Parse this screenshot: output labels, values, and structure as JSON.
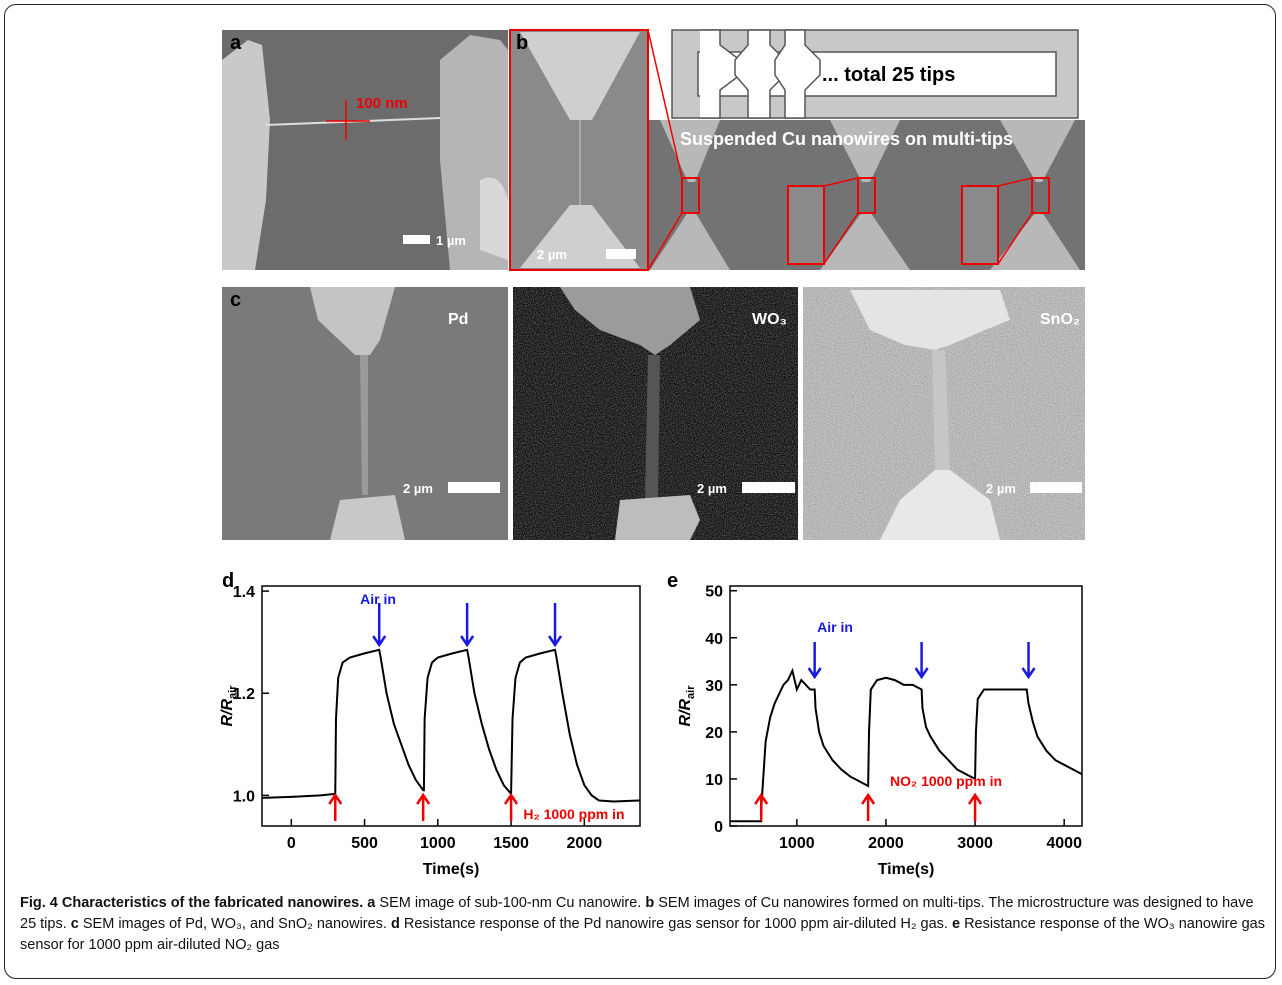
{
  "panels": {
    "a": {
      "label": "a",
      "annotation": "100 nm",
      "scale": "1 µm"
    },
    "b": {
      "label": "b",
      "scale": "2 µm",
      "schematic": "... total 25 tips",
      "title": "Suspended Cu nanowires on multi-tips"
    },
    "c": {
      "label": "c",
      "images": [
        {
          "material": "Pd",
          "scale": "2 µm"
        },
        {
          "material": "WO₃",
          "scale": "2 µm"
        },
        {
          "material": "SnO₂",
          "scale": "2 µm"
        }
      ]
    }
  },
  "chart_data": [
    {
      "type": "line",
      "panel_label": "d",
      "xlabel": "Time(s)",
      "ylabel": [
        "R/R",
        "air"
      ],
      "x": [
        -200,
        0,
        200,
        300,
        305,
        320,
        350,
        400,
        500,
        600,
        610,
        650,
        700,
        750,
        800,
        850,
        900,
        905,
        910,
        930,
        960,
        1000,
        1100,
        1200,
        1210,
        1250,
        1300,
        1350,
        1400,
        1450,
        1500,
        1510,
        1530,
        1560,
        1600,
        1700,
        1800,
        1810,
        1850,
        1900,
        1950,
        2000,
        2050,
        2100,
        2200,
        2380
      ],
      "series": [
        {
          "color": "#000000",
          "values": [
            0.995,
            0.997,
            1.0,
            1.003,
            1.15,
            1.23,
            1.26,
            1.27,
            1.278,
            1.285,
            1.27,
            1.2,
            1.14,
            1.1,
            1.06,
            1.03,
            1.01,
            1.01,
            1.15,
            1.23,
            1.26,
            1.27,
            1.278,
            1.285,
            1.27,
            1.2,
            1.14,
            1.09,
            1.05,
            1.02,
            1.003,
            1.15,
            1.23,
            1.26,
            1.27,
            1.278,
            1.285,
            1.27,
            1.2,
            1.12,
            1.06,
            1.02,
            1.0,
            0.99,
            0.988,
            0.99
          ]
        }
      ],
      "xlim": [
        -200,
        2380
      ],
      "ylim": [
        0.94,
        1.41
      ],
      "xticks": [
        0,
        500,
        1000,
        1500,
        2000
      ],
      "yticks": [
        {
          "value": 1,
          "label": "1.0"
        },
        1.2,
        1.4
      ],
      "events": {
        "gas_in": [
          300,
          900,
          1500
        ],
        "air_in": [
          600,
          1200,
          1800
        ]
      },
      "air_label": "Air in",
      "gas_label": "H₂ 1000 ppm in"
    },
    {
      "type": "line",
      "panel_label": "e",
      "xlabel": "Time(s)",
      "ylabel": [
        "R/R",
        "air"
      ],
      "x": [
        250,
        600,
        605,
        650,
        700,
        750,
        800,
        850,
        900,
        950,
        1000,
        1050,
        1100,
        1150,
        1200,
        1210,
        1250,
        1300,
        1400,
        1500,
        1600,
        1700,
        1800,
        1810,
        1830,
        1900,
        2000,
        2100,
        2200,
        2300,
        2400,
        2410,
        2450,
        2500,
        2600,
        2700,
        2800,
        2900,
        3000,
        3010,
        3030,
        3100,
        3200,
        3300,
        3400,
        3500,
        3580,
        3600,
        3650,
        3700,
        3800,
        3900,
        4000,
        4100,
        4200
      ],
      "series": [
        {
          "color": "#000000",
          "values": [
            1,
            1,
            5,
            18,
            23,
            26,
            28,
            30,
            31,
            33,
            29,
            31,
            30,
            29,
            29,
            25,
            20,
            17,
            14,
            12,
            10.5,
            9.5,
            8.5,
            20,
            29,
            31,
            31.5,
            31,
            30,
            30,
            29,
            25,
            21,
            19,
            16,
            14,
            12,
            11,
            10,
            20,
            27,
            29,
            29,
            29,
            29,
            29,
            29,
            26,
            22,
            19,
            16,
            14,
            13,
            12,
            11
          ]
        }
      ],
      "xlim": [
        250,
        4200
      ],
      "ylim": [
        0,
        51
      ],
      "xticks": [
        1000,
        2000,
        3000,
        4000
      ],
      "yticks": [
        0,
        10,
        20,
        30,
        40,
        50
      ],
      "events": {
        "gas_in": [
          600,
          1800,
          3000
        ],
        "air_in": [
          1200,
          2400,
          3600
        ]
      },
      "air_label": "Air in",
      "gas_label": "NO₂ 1000 ppm in"
    }
  ],
  "caption": {
    "title": "Fig. 4 Characteristics of the fabricated nanowires.",
    "items": [
      {
        "label": "a",
        "text": "SEM image of sub-100-nm Cu nanowire."
      },
      {
        "label": "b",
        "text": "SEM images of Cu nanowires formed on multi-tips. The microstructure was designed to have 25 tips."
      },
      {
        "label": "c",
        "text": "SEM images of Pd, WO₃, and SnO₂ nanowires."
      },
      {
        "label": "d",
        "text": "Resistance response of the Pd nanowire gas sensor for 1000 ppm air-diluted H₂ gas."
      },
      {
        "label": "e",
        "text": "Resistance response of the WO₃ nanowire gas sensor for 1000 ppm air-diluted NO₂ gas"
      }
    ]
  }
}
